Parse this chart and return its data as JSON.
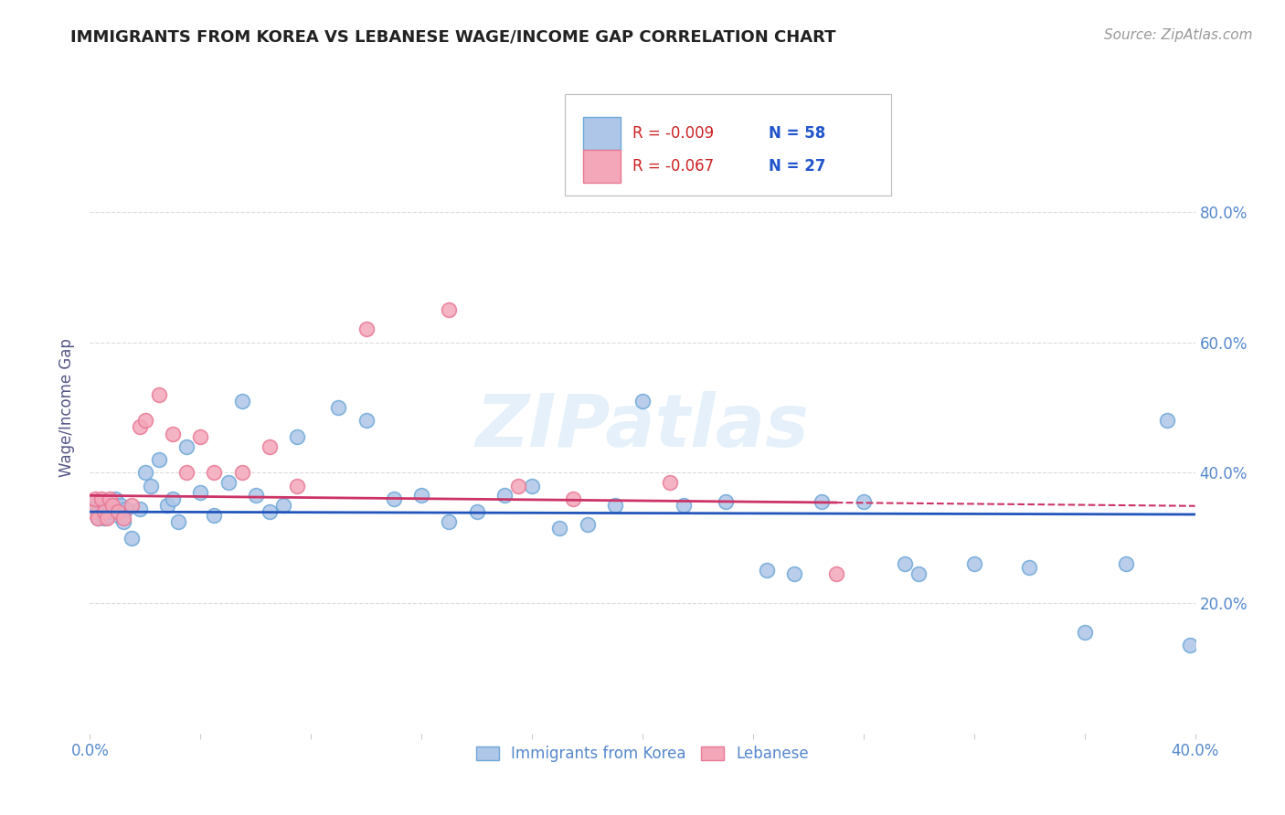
{
  "title": "IMMIGRANTS FROM KOREA VS LEBANESE WAGE/INCOME GAP CORRELATION CHART",
  "source": "Source: ZipAtlas.com",
  "ylabel": "Wage/Income Gap",
  "xlim": [
    0.0,
    0.4
  ],
  "ylim": [
    0.0,
    1.0
  ],
  "xtick_values": [
    0.0,
    0.4
  ],
  "xtick_labels": [
    "0.0%",
    "40.0%"
  ],
  "ytick_values": [
    0.2,
    0.4,
    0.6,
    0.8
  ],
  "ytick_labels": [
    "20.0%",
    "40.0%",
    "60.0%",
    "80.0%"
  ],
  "korea_color": "#aec6e8",
  "lebanon_color": "#f4a7b9",
  "korea_edge_color": "#6fa8d8",
  "lebanon_edge_color": "#e87a96",
  "trend_korea_color": "#2255bb",
  "trend_lebanon_color": "#cc3366",
  "legend_korea_R": "-0.009",
  "legend_korea_N": "58",
  "legend_lebanon_R": "-0.067",
  "legend_lebanon_N": "27",
  "legend_label_korea": "Immigrants from Korea",
  "legend_label_lebanon": "Lebanese",
  "watermark": "ZIPatlas",
  "korea_x": [
    0.001,
    0.002,
    0.003,
    0.003,
    0.004,
    0.005,
    0.005,
    0.006,
    0.007,
    0.008,
    0.009,
    0.01,
    0.011,
    0.012,
    0.013,
    0.015,
    0.018,
    0.02,
    0.022,
    0.025,
    0.028,
    0.03,
    0.032,
    0.035,
    0.04,
    0.045,
    0.05,
    0.055,
    0.06,
    0.065,
    0.07,
    0.075,
    0.09,
    0.1,
    0.11,
    0.12,
    0.13,
    0.14,
    0.15,
    0.16,
    0.17,
    0.18,
    0.19,
    0.2,
    0.215,
    0.23,
    0.245,
    0.255,
    0.265,
    0.28,
    0.295,
    0.3,
    0.32,
    0.34,
    0.36,
    0.375,
    0.39,
    0.398
  ],
  "korea_y": [
    0.345,
    0.355,
    0.33,
    0.34,
    0.35,
    0.33,
    0.345,
    0.335,
    0.34,
    0.345,
    0.36,
    0.335,
    0.35,
    0.325,
    0.345,
    0.3,
    0.345,
    0.4,
    0.38,
    0.42,
    0.35,
    0.36,
    0.325,
    0.44,
    0.37,
    0.335,
    0.385,
    0.51,
    0.365,
    0.34,
    0.35,
    0.455,
    0.5,
    0.48,
    0.36,
    0.365,
    0.325,
    0.34,
    0.365,
    0.38,
    0.315,
    0.32,
    0.35,
    0.51,
    0.35,
    0.355,
    0.25,
    0.245,
    0.355,
    0.355,
    0.26,
    0.245,
    0.26,
    0.255,
    0.155,
    0.26,
    0.48,
    0.135
  ],
  "lebanon_x": [
    0.001,
    0.002,
    0.003,
    0.004,
    0.005,
    0.006,
    0.007,
    0.008,
    0.01,
    0.012,
    0.015,
    0.018,
    0.02,
    0.025,
    0.03,
    0.035,
    0.04,
    0.045,
    0.055,
    0.065,
    0.075,
    0.1,
    0.13,
    0.155,
    0.175,
    0.21,
    0.27
  ],
  "lebanon_y": [
    0.34,
    0.36,
    0.33,
    0.36,
    0.34,
    0.33,
    0.36,
    0.35,
    0.34,
    0.33,
    0.35,
    0.47,
    0.48,
    0.52,
    0.46,
    0.4,
    0.455,
    0.4,
    0.4,
    0.44,
    0.38,
    0.62,
    0.65,
    0.38,
    0.36,
    0.385,
    0.245
  ],
  "background_color": "#ffffff",
  "grid_color": "#cccccc",
  "title_color": "#222222",
  "axis_label_color": "#555588",
  "tick_label_color": "#5588cc",
  "title_fontsize": 13,
  "source_fontsize": 11
}
